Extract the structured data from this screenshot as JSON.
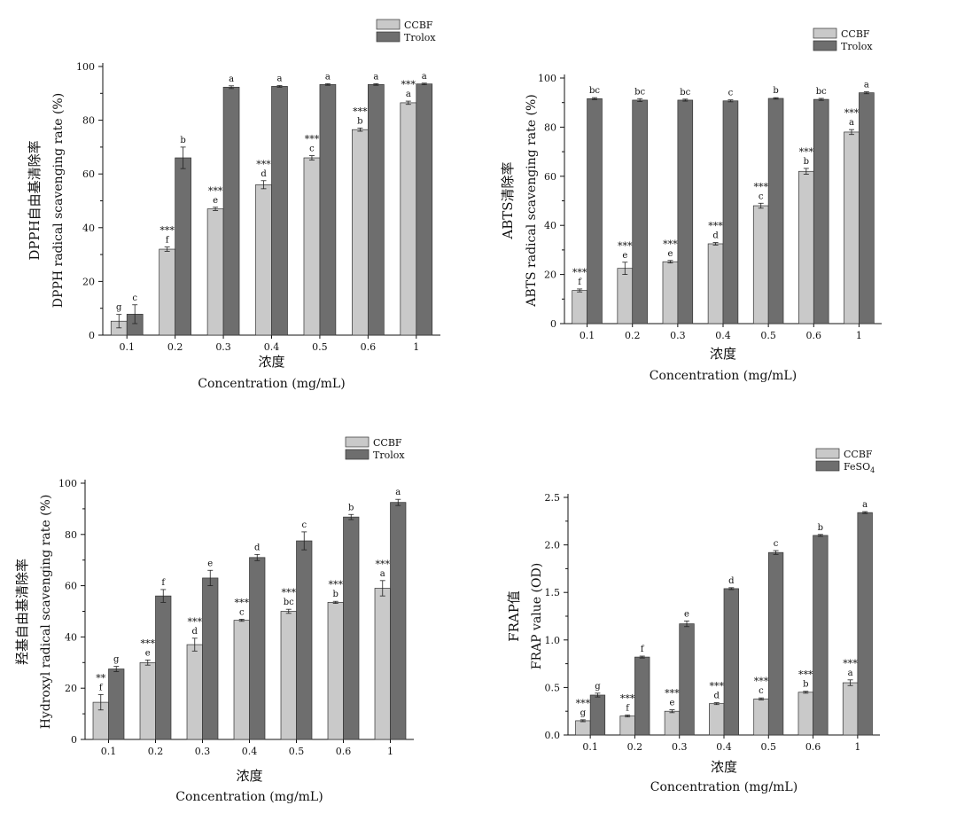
{
  "colors": {
    "bar1": "#c9c9c9",
    "bar2": "#6e6e6e",
    "axis": "#111111"
  },
  "chart_data": [
    {
      "id": "dpph",
      "type": "bar",
      "ylabel_cn": "DPPH自由基清除率",
      "ylabel_en": "DPPH radical scavenging rate (%)",
      "xlabel_cn": "浓度",
      "xlabel_en": "Concentration (mg/mL)",
      "categories": [
        "0.1",
        "0.2",
        "0.3",
        "0.4",
        "0.5",
        "0.6",
        "1"
      ],
      "ylim": [
        0,
        100
      ],
      "yticks": [
        "0",
        "20",
        "40",
        "60",
        "80",
        "100"
      ],
      "legend_position": "top-right",
      "series": [
        {
          "name": "CCBF",
          "values": [
            5.2,
            32,
            47,
            56,
            66,
            76.5,
            86.5
          ],
          "errors": [
            2.5,
            0.8,
            0.6,
            1.5,
            0.8,
            0.6,
            0.6
          ],
          "letters": [
            "g",
            "f",
            "e",
            "d",
            "c",
            "b",
            "a"
          ],
          "stars": [
            "",
            "***",
            "***",
            "***",
            "***",
            "***",
            "***"
          ]
        },
        {
          "name": "Trolox",
          "values": [
            7.8,
            66,
            92.3,
            92.6,
            93.3,
            93.3,
            93.5
          ],
          "errors": [
            3.5,
            4,
            0.5,
            0.3,
            0.3,
            0.3,
            0.3
          ],
          "letters": [
            "c",
            "b",
            "a",
            "a",
            "a",
            "a",
            "a"
          ]
        }
      ]
    },
    {
      "id": "abts",
      "type": "bar",
      "ylabel_cn": "ABTS清除率",
      "ylabel_en": "ABTS radical scavenging rate (%)",
      "xlabel_cn": "浓度",
      "xlabel_en": "Concentration (mg/mL)",
      "categories": [
        "0.1",
        "0.2",
        "0.3",
        "0.4",
        "0.5",
        "0.6",
        "1"
      ],
      "ylim": [
        0,
        100
      ],
      "yticks": [
        "0",
        "20",
        "40",
        "60",
        "80",
        "100"
      ],
      "legend_position": "top-right",
      "series": [
        {
          "name": "CCBF",
          "values": [
            13.5,
            22.5,
            25.2,
            32.5,
            48,
            62,
            78
          ],
          "errors": [
            0.6,
            2.5,
            0.5,
            0.5,
            1,
            1.2,
            1
          ],
          "letters": [
            "f",
            "e",
            "e",
            "d",
            "c",
            "b",
            "a"
          ],
          "stars": [
            "***",
            "***",
            "***",
            "***",
            "***",
            "***",
            "***"
          ]
        },
        {
          "name": "Trolox",
          "values": [
            91.6,
            91,
            91,
            90.7,
            91.7,
            91.3,
            94
          ],
          "errors": [
            0.4,
            0.6,
            0.4,
            0.4,
            0.3,
            0.4,
            0.4
          ],
          "letters": [
            "bc",
            "bc",
            "bc",
            "c",
            "b",
            "bc",
            "a"
          ]
        }
      ]
    },
    {
      "id": "hydroxyl",
      "type": "bar",
      "ylabel_cn": "羟基自由基清除率",
      "ylabel_en": "Hydroxyl radical scavenging rate (%)",
      "xlabel_cn": "浓度",
      "xlabel_en": "Concentration (mg/mL)",
      "categories": [
        "0.1",
        "0.2",
        "0.3",
        "0.4",
        "0.5",
        "0.6",
        "1"
      ],
      "ylim": [
        0,
        100
      ],
      "yticks": [
        "0",
        "20",
        "40",
        "60",
        "80",
        "100"
      ],
      "legend_position": "top-right",
      "series": [
        {
          "name": "CCBF",
          "values": [
            14.5,
            30,
            37,
            46.5,
            50,
            53.5,
            59
          ],
          "errors": [
            3,
            1,
            2.5,
            0.4,
            0.8,
            0.4,
            3
          ],
          "letters": [
            "f",
            "e",
            "d",
            "c",
            "bc",
            "b",
            "a"
          ],
          "stars": [
            "**",
            "***",
            "***",
            "***",
            "***",
            "***",
            "***"
          ]
        },
        {
          "name": "Trolox",
          "values": [
            27.5,
            56,
            63,
            71,
            77.5,
            86.8,
            92.5
          ],
          "errors": [
            1,
            2.5,
            3,
            1.2,
            3.5,
            1,
            1.2
          ],
          "letters": [
            "g",
            "f",
            "e",
            "d",
            "c",
            "b",
            "a"
          ]
        }
      ]
    },
    {
      "id": "frap",
      "type": "bar",
      "ylabel_cn": "FRAP值",
      "ylabel_en": "FRAP value (OD)",
      "xlabel_cn": "浓度",
      "xlabel_en": "Concentration (mg/mL)",
      "categories": [
        "0.1",
        "0.2",
        "0.3",
        "0.4",
        "0.5",
        "0.6",
        "1"
      ],
      "ylim": [
        0,
        2.5
      ],
      "yticks": [
        "0.0",
        "0.5",
        "1.0",
        "1.5",
        "2.0",
        "2.5"
      ],
      "legend_position": "top-right",
      "series": [
        {
          "name": "CCBF",
          "values": [
            0.15,
            0.2,
            0.25,
            0.33,
            0.38,
            0.45,
            0.55
          ],
          "errors": [
            0.01,
            0.01,
            0.015,
            0.01,
            0.01,
            0.01,
            0.03
          ],
          "letters": [
            "g",
            "f",
            "e",
            "d",
            "c",
            "b",
            "a"
          ],
          "stars": [
            "***",
            "***",
            "***",
            "***",
            "***",
            "***",
            "***"
          ]
        },
        {
          "name": "FeSO",
          "name_sub": "4",
          "values": [
            0.42,
            0.82,
            1.17,
            1.54,
            1.92,
            2.1,
            2.34
          ],
          "errors": [
            0.02,
            0.01,
            0.03,
            0.01,
            0.02,
            0.01,
            0.01
          ],
          "letters": [
            "g",
            "f",
            "e",
            "d",
            "c",
            "b",
            "a"
          ]
        }
      ]
    }
  ]
}
